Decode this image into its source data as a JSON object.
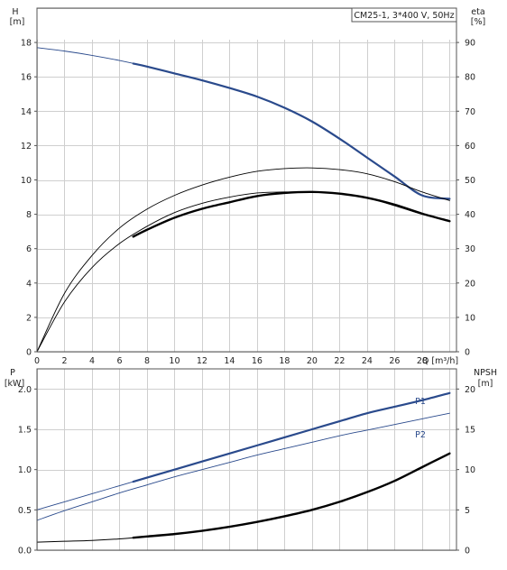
{
  "chart_data": [
    {
      "type": "line",
      "title": "CM25-1, 3*400 V, 50Hz",
      "left_axis": {
        "label_top": "H",
        "label_unit": "[m]",
        "range": [
          0,
          20
        ],
        "ticks": [
          0,
          2,
          4,
          6,
          8,
          10,
          12,
          14,
          16,
          18
        ]
      },
      "right_axis": {
        "label_top": "eta",
        "label_unit": "[%]",
        "range": [
          0,
          100
        ],
        "ticks": [
          0,
          10,
          20,
          30,
          40,
          50,
          60,
          70,
          80,
          90
        ]
      },
      "x_axis": {
        "label": "Q [m³/h]",
        "range": [
          0,
          30.5
        ],
        "ticks": [
          0,
          2,
          4,
          6,
          8,
          10,
          12,
          14,
          16,
          18,
          20,
          22,
          24,
          26,
          28
        ]
      },
      "grid": true,
      "series": [
        {
          "id": "H",
          "axis": "left",
          "color": "#2a4a8c",
          "width_thin": 0.9,
          "width_thick": 2.2,
          "bold_from": 7,
          "x": [
            0,
            2,
            4,
            6,
            8,
            10,
            12,
            14,
            16,
            18,
            20,
            22,
            24,
            26,
            28,
            30
          ],
          "y": [
            17.7,
            17.5,
            17.25,
            16.95,
            16.6,
            16.2,
            15.8,
            15.35,
            14.85,
            14.2,
            13.4,
            12.4,
            11.3,
            10.2,
            9.1,
            8.9
          ]
        },
        {
          "id": "eta_outer",
          "axis": "right",
          "color": "#000000",
          "width_thin": 0.9,
          "x": [
            0,
            2,
            4,
            6,
            8,
            10,
            12,
            14,
            16,
            18,
            20,
            22,
            24,
            26,
            28,
            30
          ],
          "y": [
            0,
            17,
            28,
            36,
            41.5,
            45.5,
            48.5,
            50.8,
            52.5,
            53.3,
            53.5,
            53,
            51.8,
            49.5,
            46.5,
            44
          ]
        },
        {
          "id": "eta_inner",
          "axis": "right",
          "color": "#000000",
          "width_thin": 0.9,
          "x": [
            0,
            2,
            4,
            6,
            8,
            10,
            12,
            14,
            16,
            18,
            20,
            22,
            24,
            26,
            28,
            30
          ],
          "y": [
            0,
            14.5,
            24.5,
            31.5,
            36.5,
            40.5,
            43.2,
            45,
            46.2,
            46.5,
            46.5,
            46,
            44.8,
            42.5,
            40,
            38
          ]
        },
        {
          "id": "eta_bold",
          "axis": "right",
          "color": "#000000",
          "width_thick": 2.4,
          "x": [
            7,
            8,
            10,
            12,
            14,
            16,
            18,
            20,
            22,
            24,
            26,
            28,
            30
          ],
          "y": [
            33.5,
            35.5,
            39,
            41.6,
            43.5,
            45.3,
            46.2,
            46.5,
            46,
            44.8,
            42.8,
            40.2,
            38
          ]
        }
      ]
    },
    {
      "type": "line",
      "left_axis": {
        "label_top": "P",
        "label_unit": "[kW]",
        "range": [
          0,
          2.25
        ],
        "ticks": [
          "0.0",
          "0.5",
          "1.0",
          "1.5",
          "2.0"
        ],
        "tick_values": [
          0,
          0.5,
          1.0,
          1.5,
          2.0
        ]
      },
      "right_axis": {
        "label_top": "NPSH",
        "label_unit": "[m]",
        "range": [
          0,
          22.5
        ],
        "ticks": [
          0,
          5,
          10,
          15,
          20
        ]
      },
      "x_axis": {
        "range": [
          0,
          30.5
        ]
      },
      "grid": true,
      "series": [
        {
          "id": "P1",
          "name": "P1",
          "axis": "left",
          "color": "#2a4a8c",
          "width_thin": 0.9,
          "width_thick": 2.2,
          "bold_from": 7,
          "x": [
            0,
            2,
            4,
            6,
            8,
            10,
            12,
            14,
            16,
            18,
            20,
            22,
            24,
            26,
            28,
            30
          ],
          "y": [
            0.5,
            0.6,
            0.7,
            0.8,
            0.9,
            1.0,
            1.1,
            1.2,
            1.3,
            1.4,
            1.5,
            1.6,
            1.7,
            1.78,
            1.86,
            1.95
          ]
        },
        {
          "id": "P2",
          "name": "P2",
          "axis": "left",
          "color": "#2a4a8c",
          "width_thin": 0.9,
          "x": [
            0,
            2,
            4,
            6,
            8,
            10,
            12,
            14,
            16,
            18,
            20,
            22,
            24,
            26,
            28,
            30
          ],
          "y": [
            0.37,
            0.49,
            0.6,
            0.71,
            0.81,
            0.91,
            1.0,
            1.09,
            1.18,
            1.26,
            1.34,
            1.42,
            1.49,
            1.56,
            1.63,
            1.7
          ]
        },
        {
          "id": "NPSH",
          "axis": "right",
          "color": "#000000",
          "width_thin": 1.0,
          "width_thick": 2.4,
          "bold_from": 7,
          "x": [
            0,
            2,
            4,
            6,
            8,
            10,
            12,
            14,
            16,
            18,
            20,
            22,
            24,
            26,
            28,
            30
          ],
          "y": [
            1.0,
            1.1,
            1.2,
            1.4,
            1.7,
            2.0,
            2.4,
            2.9,
            3.5,
            4.2,
            5.0,
            6.0,
            7.2,
            8.6,
            10.3,
            12.0
          ]
        }
      ]
    }
  ]
}
